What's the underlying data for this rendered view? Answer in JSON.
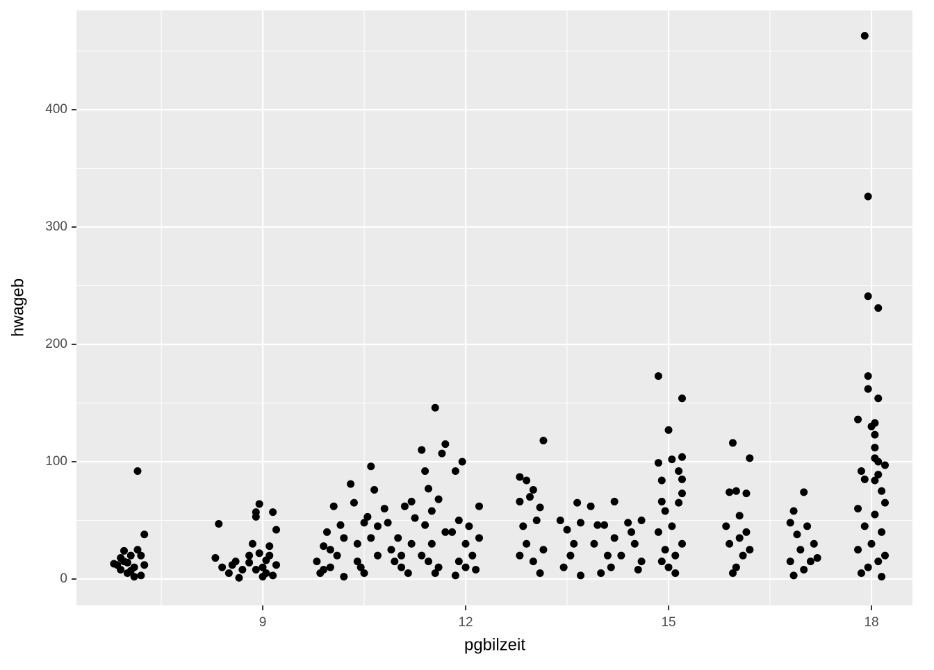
{
  "chart_data": {
    "type": "scatter",
    "x_label": "pgbilzeit",
    "y_label": "hwageb",
    "xlim": [
      6.246,
      18.606
    ],
    "ylim": [
      -22.5,
      484.6
    ],
    "xticks": [
      9,
      12,
      15,
      18
    ],
    "yticks": [
      0,
      100,
      200,
      300,
      400
    ],
    "xminor": [
      7.5,
      10.5,
      13.5,
      16.5
    ],
    "yminor": [
      50,
      150,
      250,
      350,
      450
    ],
    "grid": true,
    "color": "#000000",
    "x": [
      6.85,
      6.9,
      6.95,
      7.0,
      7.05,
      7.1,
      7.15,
      7.2,
      6.9,
      7.0,
      7.1,
      7.25,
      7.15,
      7.25,
      6.8,
      7.05,
      7.2,
      6.95,
      8.35,
      8.3,
      8.4,
      8.5,
      8.6,
      8.7,
      8.8,
      8.65,
      8.55,
      8.8,
      8.85,
      8.9,
      8.95,
      9.0,
      9.05,
      9.1,
      9.15,
      9.2,
      9.1,
      9.0,
      8.9,
      9.2,
      8.95,
      9.05,
      9.15,
      8.9,
      9.8,
      9.85,
      9.9,
      9.95,
      10.0,
      10.05,
      10.1,
      10.15,
      10.2,
      10.2,
      9.9,
      10.0,
      10.3,
      10.35,
      10.4,
      10.5,
      10.55,
      10.6,
      10.65,
      10.7,
      10.5,
      10.4,
      10.6,
      10.45,
      10.7,
      10.8,
      10.85,
      10.9,
      11.0,
      11.05,
      11.1,
      11.2,
      11.25,
      11.15,
      10.95,
      11.2,
      11.05,
      11.35,
      11.4,
      11.45,
      11.5,
      11.55,
      11.6,
      11.65,
      11.7,
      11.4,
      11.5,
      11.6,
      11.7,
      11.35,
      11.55,
      11.45,
      11.85,
      11.95,
      12.2,
      11.8,
      11.9,
      12.0,
      12.1,
      12.15,
      11.9,
      12.05,
      12.2,
      11.85,
      12.0,
      12.8,
      12.8,
      12.9,
      12.95,
      13.0,
      13.15,
      13.1,
      12.85,
      12.9,
      13.0,
      13.1,
      12.8,
      13.05,
      13.15,
      13.4,
      13.5,
      13.65,
      13.7,
      13.6,
      13.45,
      13.55,
      13.7,
      13.85,
      13.95,
      14.05,
      14.2,
      14.1,
      13.9,
      14.0,
      14.15,
      14.2,
      14.4,
      14.6,
      14.3,
      14.5,
      14.55,
      14.45,
      14.6,
      14.85,
      14.85,
      14.9,
      14.9,
      14.95,
      15.0,
      15.05,
      15.2,
      15.2,
      15.15,
      15.2,
      15.2,
      15.15,
      14.85,
      14.95,
      15.0,
      15.1,
      15.2,
      14.9,
      15.05,
      15.1,
      15.9,
      15.95,
      16.0,
      16.15,
      16.2,
      16.05,
      15.85,
      15.9,
      16.0,
      16.1,
      16.15,
      15.95,
      16.2,
      16.05,
      16.8,
      16.85,
      16.85,
      16.9,
      16.95,
      17.0,
      17.05,
      17.1,
      17.15,
      17.2,
      16.8,
      17.0,
      17.9,
      17.95,
      17.95,
      18.1,
      17.95,
      17.95,
      18.1,
      17.8,
      18.05,
      18.0,
      18.05,
      18.05,
      18.05,
      18.2,
      18.1,
      17.85,
      17.9,
      18.05,
      18.1,
      18.15,
      18.2,
      17.8,
      17.9,
      18.0,
      18.1,
      17.85,
      18.15,
      18.2,
      17.95,
      18.05,
      17.8,
      18.15
    ],
    "values": [
      12,
      8,
      15,
      5,
      20,
      10,
      25,
      3,
      18,
      14,
      2,
      12,
      92,
      38,
      13,
      7,
      20,
      24,
      47,
      18,
      10,
      5,
      15,
      8,
      20,
      1,
      12,
      14,
      30,
      57,
      64,
      10,
      5,
      20,
      57,
      42,
      28,
      2,
      8,
      12,
      22,
      16,
      3,
      53,
      15,
      5,
      28,
      40,
      10,
      62,
      20,
      46,
      2,
      35,
      8,
      25,
      81,
      65,
      30,
      48,
      53,
      96,
      76,
      20,
      5,
      15,
      35,
      10,
      45,
      60,
      48,
      25,
      35,
      10,
      62,
      66,
      52,
      5,
      15,
      30,
      20,
      110,
      92,
      77,
      58,
      146,
      68,
      107,
      115,
      46,
      30,
      10,
      40,
      20,
      5,
      15,
      92,
      100,
      62,
      40,
      50,
      30,
      20,
      8,
      15,
      45,
      35,
      3,
      10,
      87,
      66,
      84,
      70,
      76,
      118,
      61,
      45,
      30,
      15,
      5,
      20,
      50,
      25,
      50,
      42,
      65,
      48,
      30,
      10,
      20,
      3,
      62,
      46,
      46,
      66,
      20,
      30,
      5,
      10,
      35,
      48,
      50,
      20,
      30,
      8,
      40,
      15,
      173,
      99,
      84,
      66,
      58,
      127,
      102,
      154,
      104,
      92,
      85,
      73,
      65,
      40,
      25,
      10,
      5,
      30,
      15,
      45,
      20,
      74,
      116,
      75,
      73,
      103,
      54,
      45,
      30,
      10,
      20,
      40,
      5,
      25,
      35,
      48,
      58,
      3,
      38,
      25,
      74,
      45,
      15,
      30,
      18,
      15,
      8,
      463,
      326,
      241,
      231,
      173,
      162,
      154,
      136,
      133,
      130,
      123,
      112,
      103,
      97,
      100,
      92,
      85,
      84,
      89,
      75,
      65,
      60,
      45,
      30,
      15,
      5,
      40,
      20,
      10,
      55,
      25,
      2
    ]
  }
}
